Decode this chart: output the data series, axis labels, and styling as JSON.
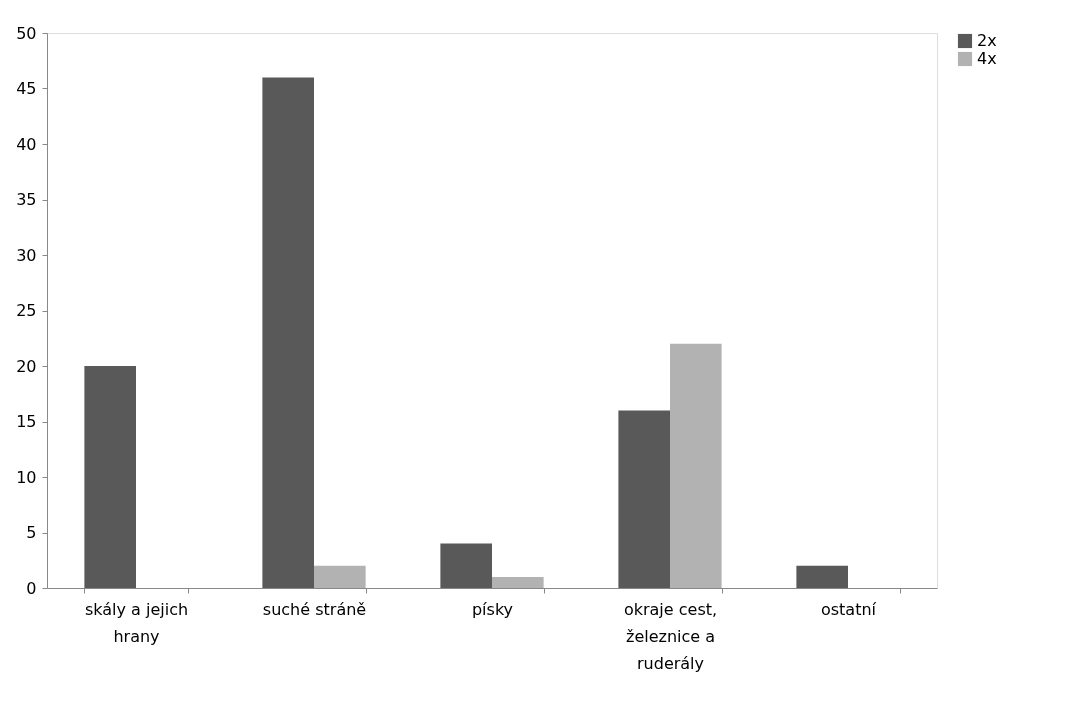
{
  "chart_data": {
    "type": "bar",
    "categories": [
      "skály a jejich hrany",
      "suché stráně",
      "písky",
      "okraje cest, železnice a ruderály",
      "ostatní"
    ],
    "series": [
      {
        "name": "2x",
        "color": "#595959",
        "values": [
          20,
          46,
          4,
          16,
          2
        ]
      },
      {
        "name": "4x",
        "color": "#b2b2b2",
        "values": [
          0,
          2,
          1,
          22,
          0
        ]
      }
    ],
    "ylim": [
      0,
      50
    ],
    "yticks": [
      0,
      5,
      10,
      15,
      20,
      25,
      30,
      35,
      40,
      45,
      50
    ],
    "grid": false,
    "legend": "right"
  }
}
